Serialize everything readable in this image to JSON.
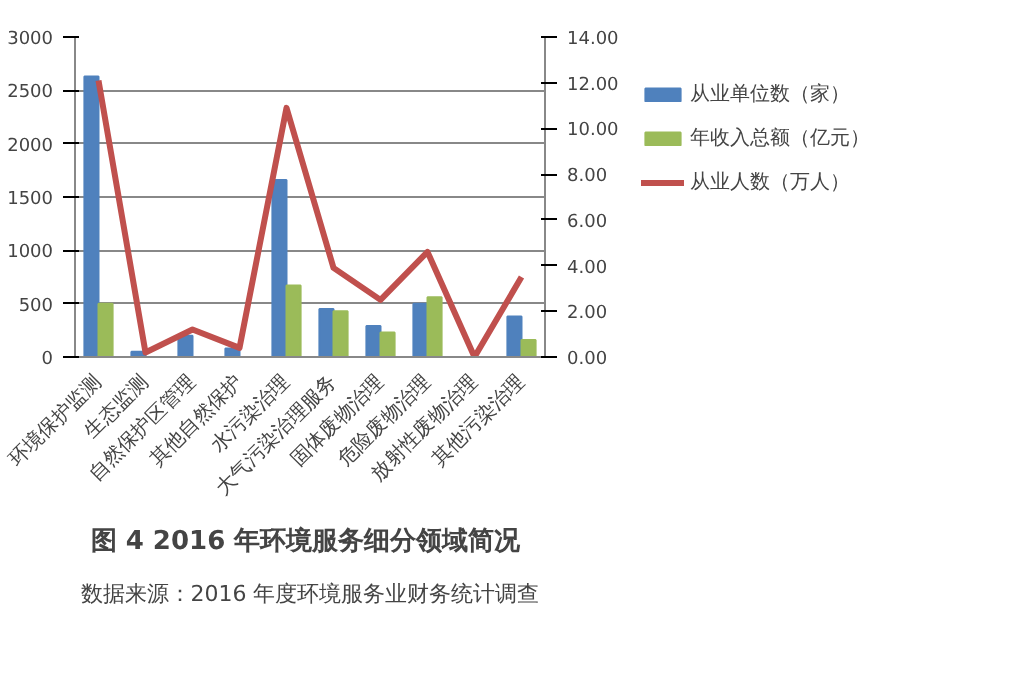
{
  "chart_data": {
    "type": "bar",
    "title": "图 4  2016 年环境服务细分领域简况",
    "annotations": [
      "数据来源：2016 年度环境服务业财务统计调查"
    ],
    "categories": [
      "环境保护监测",
      "生态监测",
      "自然保护区管理",
      "其他自然保护",
      "水污染治理",
      "大气污染治理服务",
      "固体废物治理",
      "危险废物治理",
      "放射性废物治理",
      "其他污染治理"
    ],
    "series": [
      {
        "name": "从业单位数（家）",
        "color": "#4f81bd",
        "values": [
          2630,
          50,
          200,
          80,
          1660,
          450,
          290,
          500,
          null,
          380
        ]
      },
      {
        "name": "年收入总额（亿元）",
        "color": "#9bbb59",
        "values": [
          500,
          null,
          null,
          null,
          670,
          430,
          230,
          560,
          null,
          160
        ]
      },
      {
        "name": "从业人数（万人）",
        "type": "line",
        "axis": "y2",
        "color": "#c0504d",
        "values": [
          12.1,
          0.2,
          1.2,
          0.4,
          10.9,
          3.9,
          2.5,
          4.6,
          0,
          3.5
        ]
      }
    ],
    "ylim": [
      0,
      3000
    ],
    "yticks": [
      0,
      500,
      1000,
      1500,
      2000,
      2500,
      3000
    ],
    "y2lim": [
      0,
      14
    ],
    "y2ticks": [
      {
        "value": 0,
        "label": "0.00"
      },
      {
        "value": 2,
        "label": "2.00"
      },
      {
        "value": 4,
        "label": "4.00"
      },
      {
        "value": 6,
        "label": "6.00"
      },
      {
        "value": 8,
        "label": "8.00"
      },
      {
        "value": 10,
        "label": "10.00"
      },
      {
        "value": 12,
        "label": "12.00"
      },
      {
        "value": 14,
        "label": "14.00"
      }
    ],
    "grid": "y",
    "legend": "right",
    "marker": "none"
  }
}
